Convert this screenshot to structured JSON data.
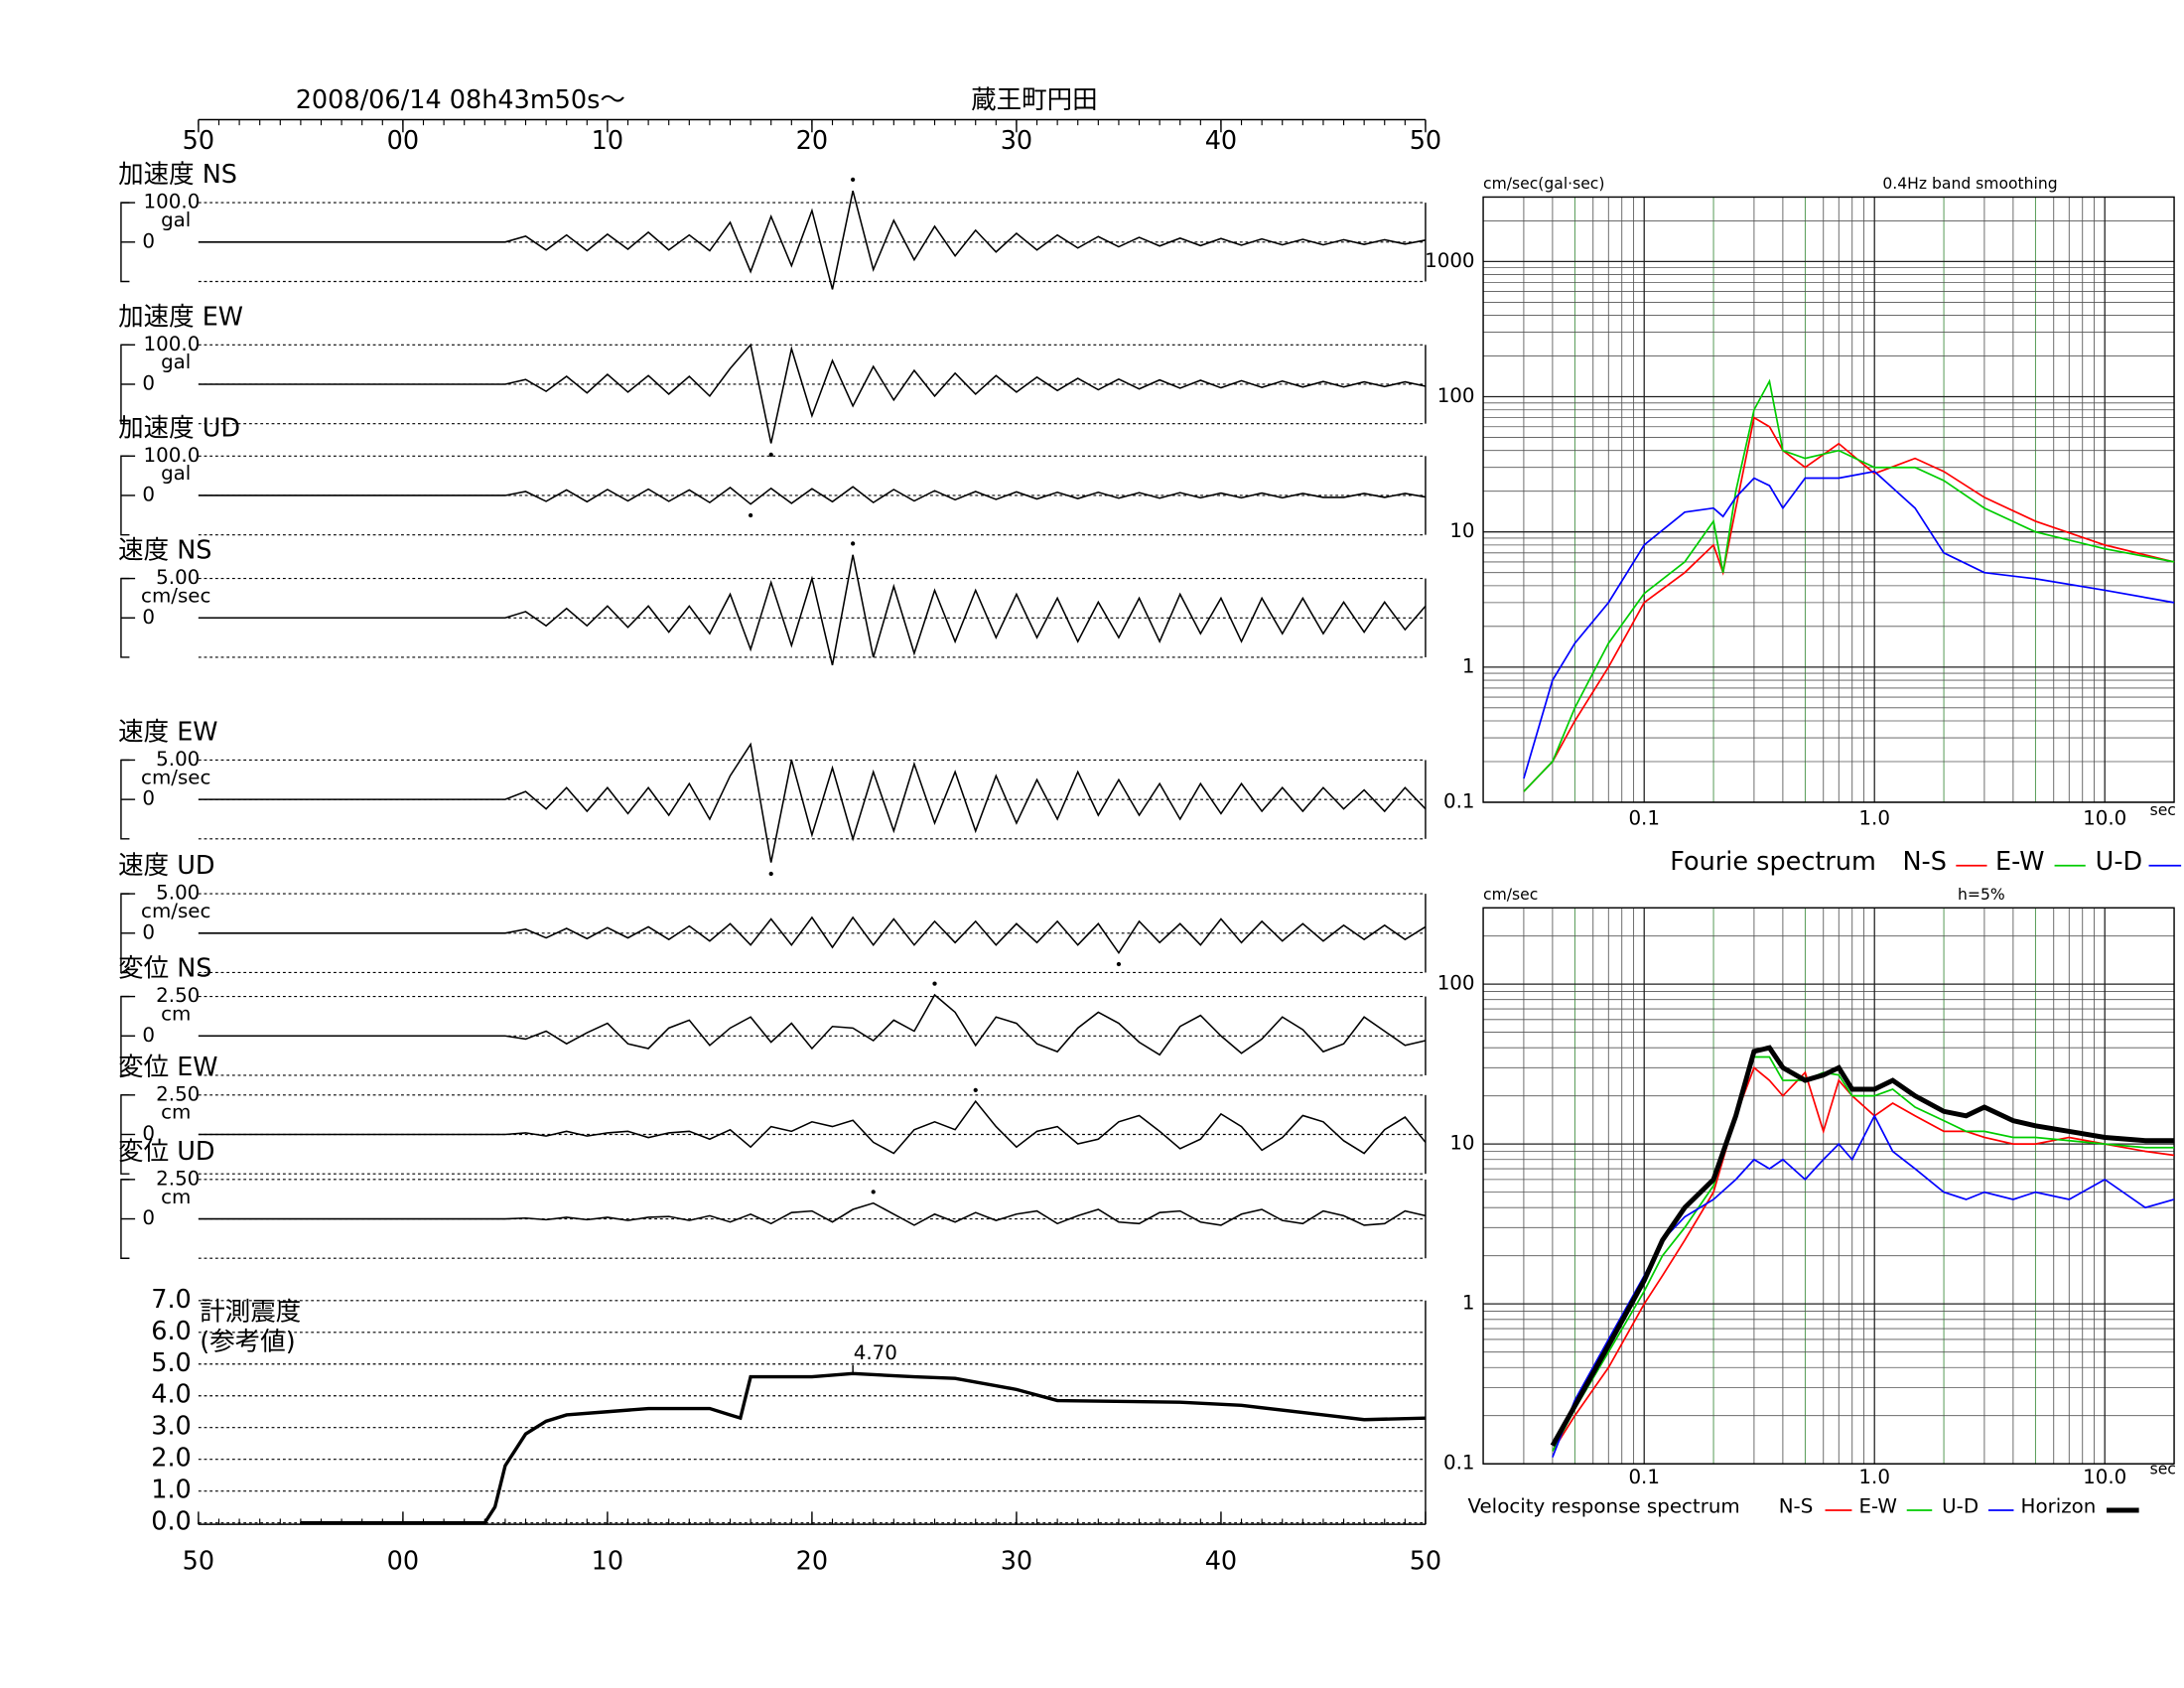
{
  "chart_data": [
    {
      "type": "waveform",
      "title": "蔵王町円田",
      "subtitle": "2008/06/14  08h43m50s〜",
      "xlim": [
        0,
        60
      ],
      "xticks": [
        {
          "value": 0,
          "label": "50"
        },
        {
          "value": 10,
          "label": "00"
        },
        {
          "value": 20,
          "label": "10"
        },
        {
          "value": 30,
          "label": "20"
        },
        {
          "value": 40,
          "label": "30"
        },
        {
          "value": 50,
          "label": "40"
        },
        {
          "value": 60,
          "label": "50"
        }
      ],
      "x": [
        0,
        15,
        16,
        17,
        18,
        19,
        20,
        21,
        22,
        23,
        24,
        25,
        26,
        27,
        28,
        29,
        30,
        31,
        32,
        33,
        34,
        35,
        36,
        37,
        38,
        39,
        40,
        41,
        42,
        43,
        44,
        45,
        46,
        47,
        48,
        49,
        50,
        51,
        52,
        53,
        54,
        55,
        56,
        57,
        58,
        59,
        60
      ],
      "series": [
        {
          "name": "加速度 NS",
          "unit": "gal",
          "color": "#000000",
          "ylim": [
            -100,
            100
          ],
          "yticks": [
            {
              "value": 100,
              "label": "100.0"
            },
            0
          ],
          "values": [
            0,
            0,
            15,
            -20,
            18,
            -22,
            20,
            -18,
            25,
            -20,
            18,
            -22,
            50,
            -75,
            65,
            -60,
            80,
            -120,
            130,
            -70,
            55,
            -45,
            40,
            -35,
            30,
            -25,
            22,
            -20,
            18,
            -15,
            14,
            -12,
            12,
            -10,
            10,
            -9,
            9,
            -8,
            8,
            -7,
            7,
            -7,
            6,
            -6,
            6,
            -5,
            5
          ]
        },
        {
          "name": "加速度 EW",
          "unit": "gal",
          "color": "#000000",
          "ylim": [
            -100,
            100
          ],
          "yticks": [
            {
              "value": 100,
              "label": "100.0"
            },
            0
          ],
          "values": [
            0,
            0,
            12,
            -18,
            20,
            -22,
            25,
            -20,
            22,
            -25,
            20,
            -30,
            40,
            100,
            -150,
            90,
            -80,
            60,
            -55,
            45,
            -40,
            35,
            -30,
            28,
            -25,
            22,
            -20,
            18,
            -16,
            15,
            -14,
            13,
            -12,
            11,
            -10,
            10,
            -9,
            9,
            -8,
            8,
            -7,
            7,
            -7,
            6,
            -6,
            6,
            -5
          ]
        },
        {
          "name": "加速度 UD",
          "unit": "gal",
          "color": "#000000",
          "ylim": [
            -100,
            100
          ],
          "yticks": [
            {
              "value": 100,
              "label": "100.0"
            },
            0
          ],
          "values": [
            0,
            0,
            10,
            -15,
            14,
            -16,
            15,
            -14,
            16,
            -15,
            14,
            -18,
            20,
            -22,
            18,
            -20,
            17,
            -16,
            22,
            -18,
            15,
            -14,
            12,
            -11,
            10,
            -10,
            9,
            -9,
            8,
            -8,
            8,
            -7,
            7,
            -7,
            7,
            -6,
            6,
            -6,
            6,
            -6,
            5,
            -5,
            -5,
            5,
            -5,
            5,
            -4
          ]
        },
        {
          "name": "速度 NS",
          "unit": "cm/sec",
          "color": "#000000",
          "ylim": [
            -5,
            5
          ],
          "yticks": [
            {
              "value": 5,
              "label": "5.00"
            },
            0
          ],
          "values": [
            0,
            0,
            0.8,
            -1,
            1.2,
            -1,
            1.5,
            -1.2,
            1.5,
            -1.8,
            1.5,
            -2,
            3,
            -4,
            4.5,
            -3.5,
            5,
            -6,
            8,
            -5,
            4,
            -4.5,
            3.5,
            -3,
            3.5,
            -2.5,
            3,
            -2.5,
            2.5,
            -3,
            2,
            -2.5,
            2.5,
            -3,
            3,
            -2,
            2.5,
            -3,
            2.5,
            -2,
            2.5,
            -2,
            2,
            -1.8,
            2,
            -1.5,
            1.5
          ]
        },
        {
          "name": "速度 EW",
          "unit": "cm/sec",
          "color": "#000000",
          "ylim": [
            -5,
            5
          ],
          "yticks": [
            {
              "value": 5,
              "label": "5.00"
            },
            0
          ],
          "values": [
            0,
            0,
            1,
            -1.2,
            1.5,
            -1.5,
            1.5,
            -1.8,
            1.5,
            -2,
            2,
            -2.5,
            3,
            7,
            -8,
            5,
            -4.5,
            4,
            -5,
            3.5,
            -4,
            4.5,
            -3,
            3.5,
            -4,
            3,
            -3,
            2.5,
            -2.5,
            3.5,
            -2,
            2.5,
            -2,
            2,
            -2.5,
            2,
            -1.8,
            2,
            -1.5,
            1.5,
            -1.5,
            1.5,
            -1.2,
            1.2,
            -1.5,
            1.5,
            -1.2
          ]
        },
        {
          "name": "速度 UD",
          "unit": "cm/sec",
          "color": "#000000",
          "ylim": [
            -5,
            5
          ],
          "yticks": [
            {
              "value": 5,
              "label": "5.00"
            },
            0
          ],
          "values": [
            0,
            0,
            0.5,
            -0.6,
            0.6,
            -0.7,
            0.7,
            -0.6,
            0.8,
            -0.8,
            0.9,
            -1,
            1.2,
            -1.5,
            1.8,
            -1.5,
            2,
            -1.8,
            2,
            -1.5,
            1.8,
            -1.5,
            1.5,
            -1.2,
            1.5,
            -1.5,
            1.2,
            -1.2,
            1.5,
            -1.5,
            1.2,
            -2.5,
            1.5,
            -1.2,
            1.2,
            -1.5,
            1.8,
            -1.2,
            1.5,
            -1,
            1.2,
            -1,
            1,
            -0.8,
            1,
            -0.8,
            0.8
          ]
        },
        {
          "name": "変位 NS",
          "unit": "cm",
          "color": "#000000",
          "ylim": [
            -2.5,
            2.5
          ],
          "yticks": [
            {
              "value": 2.5,
              "label": "2.50"
            },
            0
          ],
          "values": [
            0,
            0,
            -0.2,
            0.3,
            -0.5,
            0.2,
            0.8,
            -0.5,
            -0.8,
            0.5,
            1,
            -0.6,
            0.5,
            1.2,
            -0.4,
            0.8,
            -0.8,
            0.6,
            0.5,
            -0.3,
            1,
            0.3,
            2.6,
            1.5,
            -0.6,
            1.2,
            0.8,
            -0.5,
            -1,
            0.5,
            1.5,
            0.8,
            -0.4,
            -1.2,
            0.6,
            1.3,
            0,
            -1.1,
            -0.2,
            1.2,
            0.4,
            -1,
            -0.5,
            1.2,
            0.3,
            -0.6,
            -0.3
          ]
        },
        {
          "name": "変位 EW",
          "unit": "cm",
          "color": "#000000",
          "ylim": [
            -2.5,
            2.5
          ],
          "yticks": [
            {
              "value": 2.5,
              "label": "2.50"
            },
            0
          ],
          "values": [
            0,
            0,
            0.1,
            -0.1,
            0.2,
            -0.1,
            0.1,
            0.2,
            -0.2,
            0.1,
            0.2,
            -0.3,
            0.3,
            -0.8,
            0.5,
            0.2,
            0.8,
            0.5,
            0.9,
            -0.5,
            -1.2,
            0.3,
            0.8,
            0.3,
            2.1,
            0.5,
            -0.8,
            0.2,
            0.5,
            -0.6,
            -0.3,
            0.8,
            1.2,
            0.2,
            -0.9,
            -0.3,
            1.3,
            0.5,
            -1,
            -0.2,
            1.2,
            0.8,
            -0.4,
            -1.2,
            0.3,
            1.1,
            -0.5
          ]
        },
        {
          "name": "変位 UD",
          "unit": "cm",
          "color": "#000000",
          "ylim": [
            -2.5,
            2.5
          ],
          "yticks": [
            {
              "value": 2.5,
              "label": "2.50"
            },
            0
          ],
          "values": [
            0,
            0,
            0.05,
            -0.05,
            0.1,
            -0.05,
            0.1,
            -0.1,
            0.1,
            0.15,
            -0.1,
            0.2,
            -0.2,
            0.3,
            -0.3,
            0.4,
            0.5,
            -0.2,
            0.6,
            1,
            0.3,
            -0.4,
            0.3,
            -0.2,
            0.4,
            -0.1,
            0.3,
            0.5,
            -0.3,
            0.2,
            0.6,
            -0.2,
            -0.3,
            0.4,
            0.5,
            -0.2,
            -0.4,
            0.3,
            0.6,
            -0.1,
            -0.3,
            0.5,
            0.2,
            -0.4,
            -0.3,
            0.5,
            0.2
          ]
        }
      ]
    },
    {
      "type": "line",
      "title": "計測震度",
      "subtitle": "(参考値)",
      "color": "#000000",
      "grid": true,
      "xlim": [
        0,
        60
      ],
      "xticks": [
        {
          "value": 0,
          "label": "50"
        },
        {
          "value": 10,
          "label": "00"
        },
        {
          "value": 20,
          "label": "10"
        },
        {
          "value": 30,
          "label": "20"
        },
        {
          "value": 40,
          "label": "30"
        },
        {
          "value": 50,
          "label": "40"
        },
        {
          "value": 60,
          "label": "50"
        }
      ],
      "ylim": [
        0,
        7
      ],
      "yticks": [
        {
          "value": 0,
          "label": "0.0"
        },
        {
          "value": 1,
          "label": "1.0"
        },
        {
          "value": 2,
          "label": "2.0"
        },
        {
          "value": 3,
          "label": "3.0"
        },
        {
          "value": 4,
          "label": "4.0"
        },
        {
          "value": 5,
          "label": "5.0"
        },
        {
          "value": 6,
          "label": "6.0"
        },
        {
          "value": 7,
          "label": "7.0"
        }
      ],
      "x": [
        5,
        14,
        14.5,
        15,
        16,
        17,
        18,
        20,
        22,
        25,
        26,
        26.5,
        27,
        30,
        32,
        35,
        37,
        40,
        42,
        48,
        51,
        55,
        57,
        60
      ],
      "values": [
        0,
        0,
        0.5,
        1.8,
        2.8,
        3.2,
        3.4,
        3.5,
        3.6,
        3.6,
        3.4,
        3.3,
        4.6,
        4.6,
        4.7,
        4.6,
        4.55,
        4.2,
        3.85,
        3.8,
        3.7,
        3.4,
        3.25,
        3.3
      ],
      "annotations": [
        {
          "text": "4.70",
          "x": 32,
          "y": 4.7
        }
      ]
    },
    {
      "type": "line",
      "title": "Fourie spectrum",
      "subtitle": "0.4Hz band smoothing",
      "ylabel": "cm/sec(gal·sec)",
      "xlabel": "sec",
      "log_scale": true,
      "grid": true,
      "xlim": [
        0.02,
        20
      ],
      "xticks": [
        0.1,
        {
          "value": 1,
          "label": "1.0"
        },
        {
          "value": 10,
          "label": "10.0"
        }
      ],
      "ylim": [
        0.1,
        3000
      ],
      "yticks": [
        0.1,
        1,
        10,
        100,
        1000
      ],
      "x": [
        0.03,
        0.04,
        0.05,
        0.07,
        0.1,
        0.15,
        0.2,
        0.22,
        0.25,
        0.3,
        0.35,
        0.4,
        0.5,
        0.7,
        1,
        1.5,
        2,
        3,
        5,
        10,
        20
      ],
      "series": [
        {
          "name": "N-S",
          "color": "#ff0000",
          "values": [
            0.12,
            0.2,
            0.4,
            1,
            3,
            5,
            8,
            5,
            15,
            70,
            60,
            40,
            30,
            45,
            27,
            35,
            28,
            18,
            12,
            8,
            6
          ]
        },
        {
          "name": "E-W",
          "color": "#00cc00",
          "values": [
            0.12,
            0.2,
            0.5,
            1.5,
            3.5,
            6,
            12,
            5,
            20,
            80,
            130,
            40,
            35,
            40,
            30,
            30,
            24,
            15,
            10,
            7.5,
            6
          ]
        },
        {
          "name": "U-D",
          "color": "#0000ff",
          "values": [
            0.15,
            0.8,
            1.5,
            3,
            8,
            14,
            15,
            13,
            18,
            25,
            22,
            15,
            25,
            25,
            28,
            15,
            7,
            5,
            4.5,
            3.7,
            3
          ]
        }
      ]
    },
    {
      "type": "line",
      "title": "Velocity response spectrum",
      "subtitle": "h=5%",
      "ylabel": "cm/sec",
      "xlabel": "sec",
      "log_scale": true,
      "grid": true,
      "xlim": [
        0.02,
        20
      ],
      "xticks": [
        0.1,
        {
          "value": 1,
          "label": "1.0"
        },
        {
          "value": 10,
          "label": "10.0"
        }
      ],
      "ylim": [
        0.1,
        300
      ],
      "yticks": [
        0.1,
        1,
        10,
        100
      ],
      "x": [
        0.04,
        0.05,
        0.07,
        0.1,
        0.12,
        0.15,
        0.2,
        0.25,
        0.3,
        0.35,
        0.4,
        0.5,
        0.6,
        0.7,
        0.8,
        1,
        1.2,
        1.5,
        2,
        2.5,
        3,
        4,
        5,
        7,
        10,
        15,
        20
      ],
      "series": [
        {
          "name": "N-S",
          "color": "#ff0000",
          "values": [
            0.12,
            0.2,
            0.4,
            1,
            1.5,
            2.5,
            5,
            15,
            30,
            25,
            20,
            28,
            12,
            25,
            20,
            15,
            18,
            15,
            12,
            12,
            11,
            10,
            10,
            11,
            10,
            9,
            8.5
          ]
        },
        {
          "name": "E-W",
          "color": "#00cc00",
          "values": [
            0.12,
            0.22,
            0.5,
            1.2,
            2,
            3,
            5.5,
            15,
            35,
            35,
            25,
            25,
            28,
            27,
            20,
            20,
            22,
            17,
            14,
            12,
            12,
            11,
            11,
            10.5,
            10,
            9.5,
            9.5
          ]
        },
        {
          "name": "U-D",
          "color": "#0000ff",
          "values": [
            0.11,
            0.25,
            0.6,
            1.5,
            2.5,
            3.5,
            4.5,
            6,
            8,
            7,
            8,
            6,
            8,
            10,
            8,
            15,
            9,
            7,
            5,
            4.5,
            5,
            4.5,
            5,
            4.5,
            6,
            4,
            4.5
          ]
        },
        {
          "name": "Horizon",
          "color": "#000000",
          "values": [
            0.13,
            0.23,
            0.55,
            1.4,
            2.5,
            4,
            6,
            15,
            38,
            40,
            30,
            25,
            27,
            30,
            22,
            22,
            25,
            20,
            16,
            15,
            17,
            14,
            13,
            12,
            11,
            10.5,
            10.5
          ]
        }
      ]
    }
  ]
}
